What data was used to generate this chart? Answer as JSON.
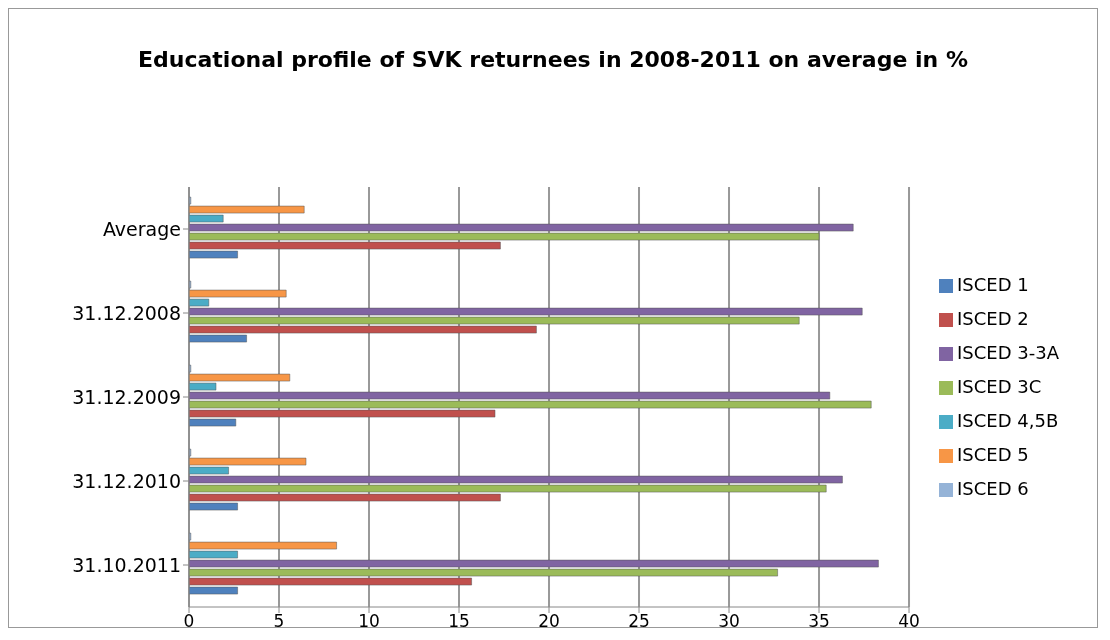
{
  "chart_data": {
    "type": "bar",
    "orientation": "horizontal",
    "title": "Educational profile of SVK returnees in 2008-2011 on average in %",
    "categories": [
      "Average",
      "31.12.2008",
      "31.12.2009",
      "31.12.2010",
      "31.10.2011"
    ],
    "series": [
      {
        "name": "ISCED 6",
        "color": "#95b3d7",
        "values": [
          0.1,
          0.1,
          0.1,
          0.1,
          0.1
        ]
      },
      {
        "name": "ISCED 5",
        "color": "#f79646",
        "values": [
          6.4,
          5.4,
          5.6,
          6.5,
          8.2
        ]
      },
      {
        "name": "ISCED 4,5B",
        "color": "#4bacc6",
        "values": [
          1.9,
          1.1,
          1.5,
          2.2,
          2.7
        ]
      },
      {
        "name": "ISCED 3-3A",
        "color": "#8064a2",
        "values": [
          36.9,
          37.4,
          35.6,
          36.3,
          38.3
        ]
      },
      {
        "name": "ISCED 3C",
        "color": "#9bbb59",
        "values": [
          35.0,
          33.9,
          37.9,
          35.4,
          32.7
        ]
      },
      {
        "name": "ISCED 2",
        "color": "#c0504d",
        "values": [
          17.3,
          19.3,
          17.0,
          17.3,
          15.7
        ]
      },
      {
        "name": "ISCED 1",
        "color": "#4f81bd",
        "values": [
          2.7,
          3.2,
          2.6,
          2.7,
          2.7
        ]
      }
    ],
    "xlim": [
      0,
      40
    ],
    "xticks": [
      0,
      5,
      10,
      15,
      20,
      25,
      30,
      35,
      40
    ],
    "grid": "x",
    "legend": "right"
  }
}
